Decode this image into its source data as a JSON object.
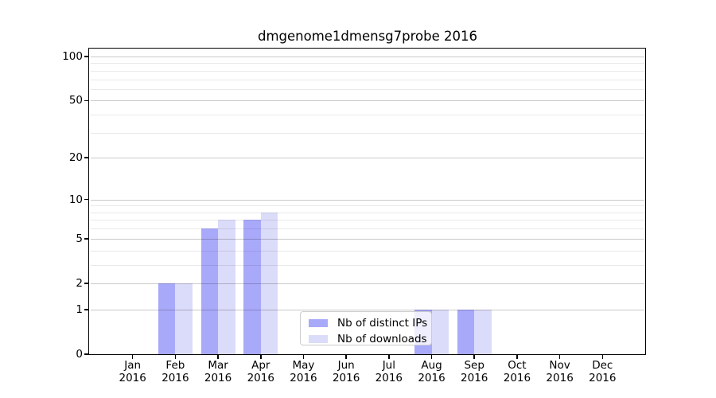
{
  "title": "dmgenome1dmensg7probe 2016",
  "chart_data": {
    "type": "bar",
    "title": "dmgenome1dmensg7probe 2016",
    "categories": [
      "Jan 2016",
      "Feb 2016",
      "Mar 2016",
      "Apr 2016",
      "May 2016",
      "Jun 2016",
      "Jul 2016",
      "Aug 2016",
      "Sep 2016",
      "Oct 2016",
      "Nov 2016",
      "Dec 2016"
    ],
    "series": [
      {
        "name": "Nb of distinct IPs",
        "color": "#a9a9fa",
        "values": [
          0,
          2,
          6,
          7,
          0,
          0,
          0,
          1,
          1,
          0,
          0,
          0
        ]
      },
      {
        "name": "Nb of downloads",
        "color": "#dbdbfa",
        "values": [
          0,
          2,
          7,
          8,
          0,
          0,
          0,
          1,
          1,
          0,
          0,
          0
        ]
      }
    ],
    "xlabel": "",
    "ylabel": "",
    "yscale": "log1p",
    "y_ticks": [
      0,
      1,
      2,
      5,
      10,
      20,
      50,
      100
    ],
    "y_minor_gridlines": [
      3,
      4,
      6,
      7,
      8,
      9,
      30,
      40,
      60,
      70,
      80,
      90
    ],
    "ylim": [
      0,
      112
    ],
    "grid": true,
    "legend_position": "lower center",
    "background_color": "#ffffff",
    "axis_color": "#000000"
  }
}
